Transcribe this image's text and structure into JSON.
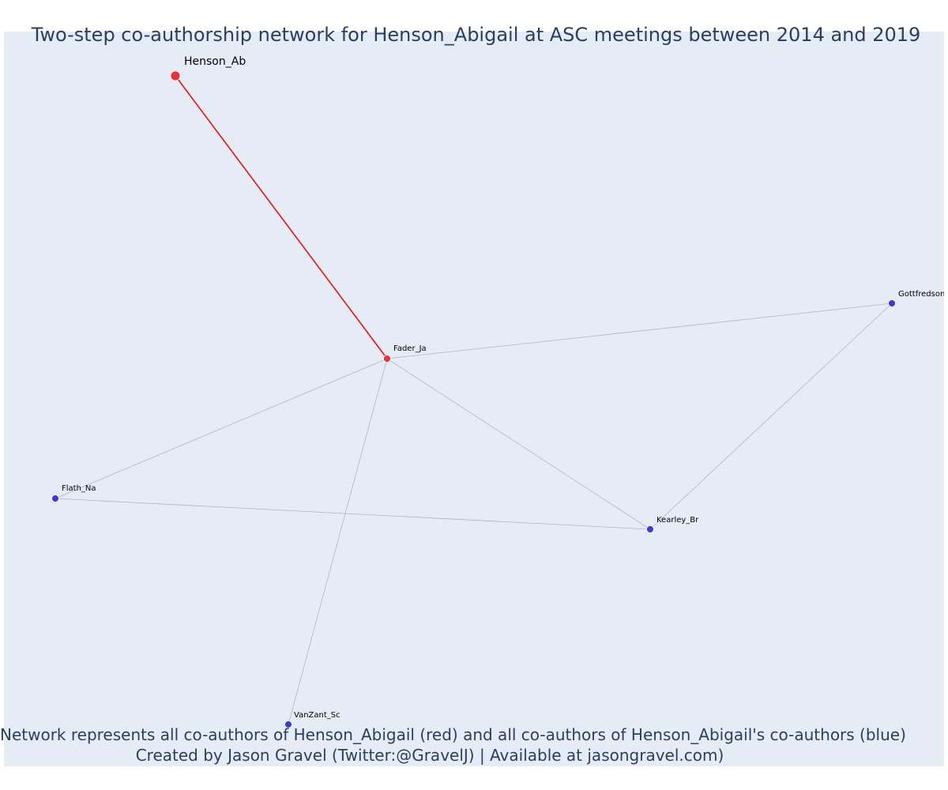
{
  "title": "Two-step co-authorship network for Henson_Abigail at ASC meetings between 2014 and 2019",
  "footnote_line1": "Network represents all co-authors of Henson_Abigail (red) and all co-authors of Henson_Abigail's co-authors (blue)",
  "footnote_line2": "Created by Jason Gravel (Twitter:@GravelJ) | Available at jasongravel.com)",
  "colors": {
    "background": "#e5ecf6",
    "focal": "#e8313a",
    "coauthor": "#e8313a",
    "second_step": "#3b3bd9",
    "focal_edge": "#ff0000",
    "other_edge": "#b3b3c6"
  },
  "nodes": [
    {
      "id": "Henson_Ab",
      "label": "Henson_Ab",
      "group": "focal"
    },
    {
      "id": "Fader_Ja",
      "label": "Fader_Ja",
      "group": "coauthor"
    },
    {
      "id": "Gottfredson",
      "label": "Gottfredson_",
      "group": "second_step"
    },
    {
      "id": "Flath_Na",
      "label": "Flath_Na",
      "group": "second_step"
    },
    {
      "id": "Kearley_Br",
      "label": "Kearley_Br",
      "group": "second_step"
    },
    {
      "id": "VanZant_Sc",
      "label": "VanZant_Sc",
      "group": "second_step"
    }
  ],
  "edges": [
    {
      "source": "Henson_Ab",
      "target": "Fader_Ja",
      "focal": true
    },
    {
      "source": "Fader_Ja",
      "target": "Gottfredson",
      "focal": false
    },
    {
      "source": "Fader_Ja",
      "target": "Flath_Na",
      "focal": false
    },
    {
      "source": "Fader_Ja",
      "target": "Kearley_Br",
      "focal": false
    },
    {
      "source": "Fader_Ja",
      "target": "VanZant_Sc",
      "focal": false
    },
    {
      "source": "Gottfredson",
      "target": "Kearley_Br",
      "focal": false
    },
    {
      "source": "Flath_Na",
      "target": "Kearley_Br",
      "focal": false
    }
  ]
}
